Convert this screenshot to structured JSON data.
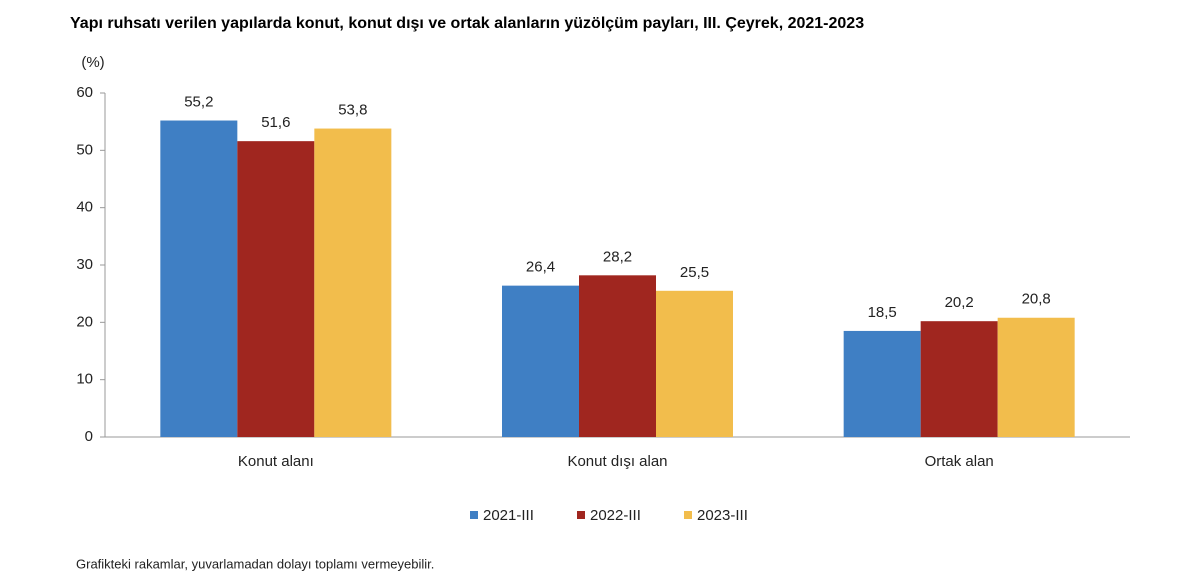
{
  "chart_data": {
    "type": "bar",
    "title": "Yapı ruhsatı verilen yapılarda konut, konut dışı ve ortak alanların yüzölçüm payları, III. Çeyrek, 2021-2023",
    "y_label": "(%)",
    "note": "Grafikteki rakamlar, yuvarlamadan dolayı toplamı vermeyebilir.",
    "categories": [
      "Konut alanı",
      "Konut dışı alan",
      "Ortak alan"
    ],
    "series": [
      {
        "name": "2021-III",
        "color": "#3f7fc4",
        "values": [
          55.2,
          26.4,
          18.5
        ],
        "value_labels": [
          "55,2",
          "26,4",
          "18,5"
        ]
      },
      {
        "name": "2022-III",
        "color": "#a0261f",
        "values": [
          51.6,
          28.2,
          20.2
        ],
        "value_labels": [
          "51,6",
          "28,2",
          "20,2"
        ]
      },
      {
        "name": "2023-III",
        "color": "#f2bd4c",
        "values": [
          53.8,
          25.5,
          20.8
        ],
        "value_labels": [
          "53,8",
          "25,5",
          "20,8"
        ]
      }
    ],
    "ylim": [
      0,
      60
    ],
    "yticks": [
      0,
      10,
      20,
      30,
      40,
      50,
      60
    ],
    "grid": false
  }
}
